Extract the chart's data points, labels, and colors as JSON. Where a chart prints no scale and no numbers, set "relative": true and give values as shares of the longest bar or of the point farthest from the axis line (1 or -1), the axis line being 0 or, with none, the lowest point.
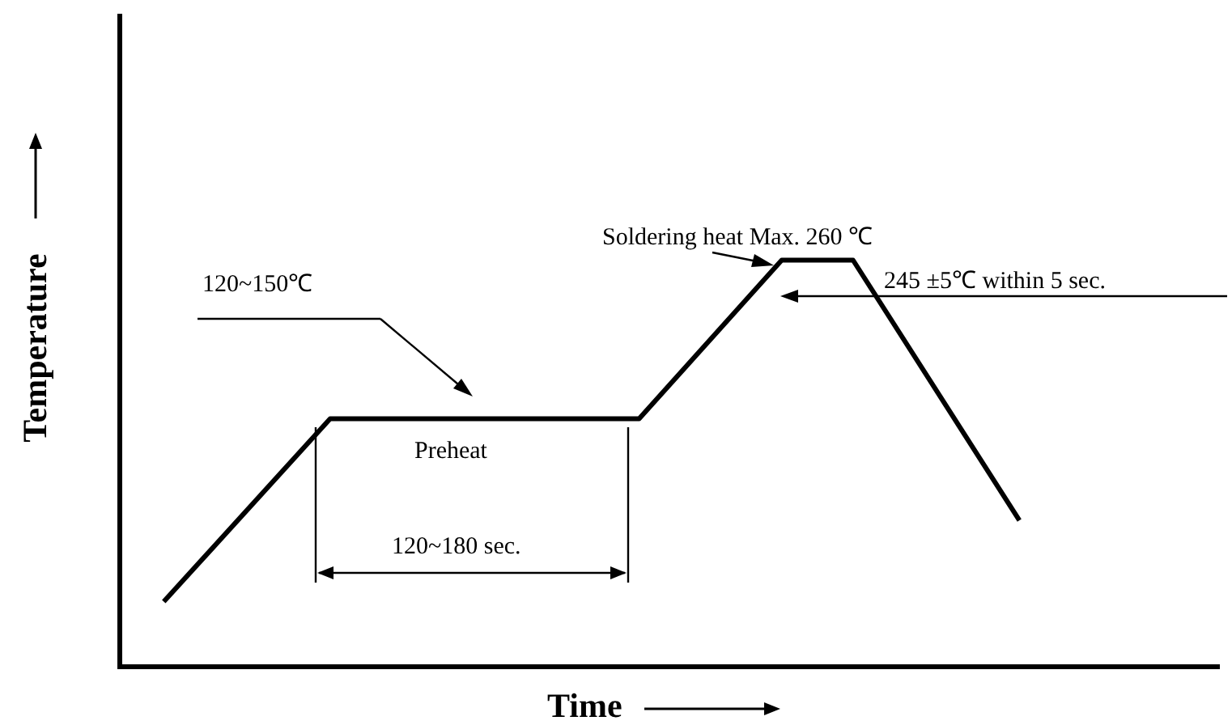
{
  "chart_data": {
    "type": "line",
    "relative": true,
    "xlabel": "Time",
    "ylabel": "Temperature",
    "categories": [
      null,
      null,
      null,
      null,
      null,
      null,
      null,
      null,
      null,
      null,
      null,
      null,
      null,
      null,
      null,
      null,
      null,
      null,
      null,
      null,
      null,
      null,
      null,
      null,
      null,
      null,
      null,
      null,
      null,
      null,
      null,
      null,
      null,
      null,
      null,
      null,
      null
    ],
    "values": [
      0.16,
      null,
      null,
      null,
      null,
      null,
      null,
      0.61,
      null,
      null,
      null,
      null,
      null,
      null,
      null,
      null,
      null,
      null,
      null,
      null,
      0.61,
      null,
      null,
      null,
      null,
      null,
      1,
      null,
      null,
      1,
      null,
      null,
      null,
      null,
      null,
      null,
      0.36
    ],
    "color": "#000000",
    "marker": "none",
    "grid": false,
    "legend": false,
    "annotations": [
      "Soldering heat Max. 260 ℃",
      "120~150℃",
      "Preheat",
      "120~180 sec.",
      "245 ±5℃ within 5 sec."
    ]
  }
}
